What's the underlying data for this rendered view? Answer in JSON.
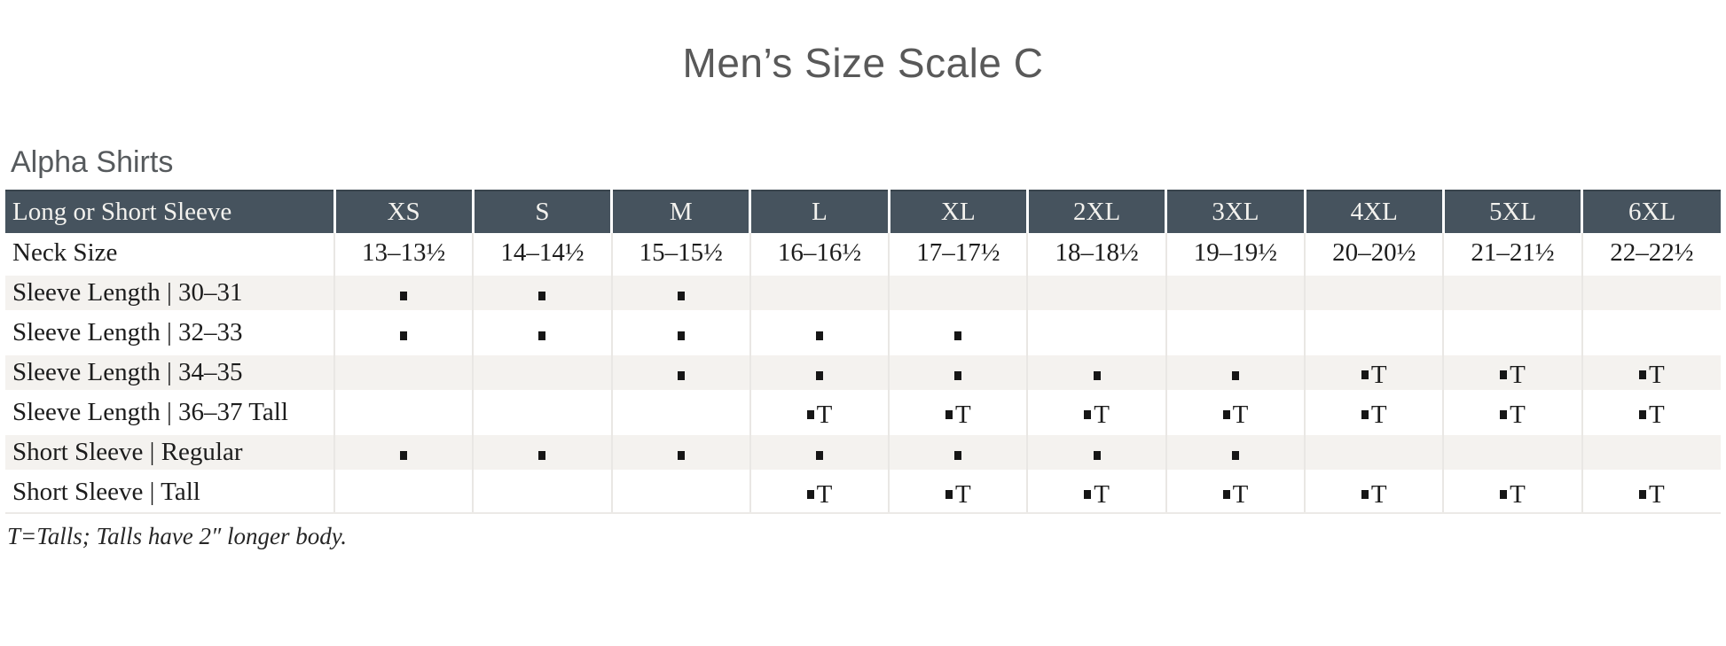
{
  "title": "Men’s Size Scale C",
  "section_heading": "Alpha Shirts",
  "footnote": "T=Talls; Talls have 2″ longer body.",
  "legend": {
    "dot_marker": "small-black-square",
    "tall_marker_letter": "T"
  },
  "colors": {
    "header_bg": "#46535e",
    "header_text": "#f3f2ee",
    "stripe_bg": "#f4f2ef",
    "title_text": "#595959",
    "heading_text": "#565a5d",
    "body_text": "#1c1c1c",
    "grid_line": "#e9e7e4"
  },
  "table": {
    "header": {
      "label": "Long or Short Sleeve",
      "sizes": [
        "XS",
        "S",
        "M",
        "L",
        "XL",
        "2XL",
        "3XL",
        "4XL",
        "5XL",
        "6XL"
      ]
    },
    "rows": [
      {
        "label": "Neck Size",
        "type": "text",
        "values": [
          "13–13½",
          "14–14½",
          "15–15½",
          "16–16½",
          "17–17½",
          "18–18½",
          "19–19½",
          "20–20½",
          "21–21½",
          "22–22½"
        ]
      },
      {
        "label": "Sleeve Length  |  30–31",
        "type": "marks",
        "values": [
          "dot",
          "dot",
          "dot",
          "",
          "",
          "",
          "",
          "",
          "",
          ""
        ]
      },
      {
        "label": "Sleeve Length  |  32–33",
        "type": "marks",
        "values": [
          "dot",
          "dot",
          "dot",
          "dot",
          "dot",
          "",
          "",
          "",
          "",
          ""
        ]
      },
      {
        "label": "Sleeve Length  |  34–35",
        "type": "marks",
        "values": [
          "",
          "",
          "dot",
          "dot",
          "dot",
          "dot",
          "dot",
          "dotT",
          "dotT",
          "dotT"
        ]
      },
      {
        "label": "Sleeve Length  |  36–37 Tall",
        "type": "marks",
        "values": [
          "",
          "",
          "",
          "dotT",
          "dotT",
          "dotT",
          "dotT",
          "dotT",
          "dotT",
          "dotT"
        ]
      },
      {
        "label": "Short Sleeve  |  Regular",
        "type": "marks",
        "values": [
          "dot",
          "dot",
          "dot",
          "dot",
          "dot",
          "dot",
          "dot",
          "",
          "",
          ""
        ]
      },
      {
        "label": "Short Sleeve  |  Tall",
        "type": "marks",
        "values": [
          "",
          "",
          "",
          "dotT",
          "dotT",
          "dotT",
          "dotT",
          "dotT",
          "dotT",
          "dotT"
        ]
      }
    ]
  }
}
